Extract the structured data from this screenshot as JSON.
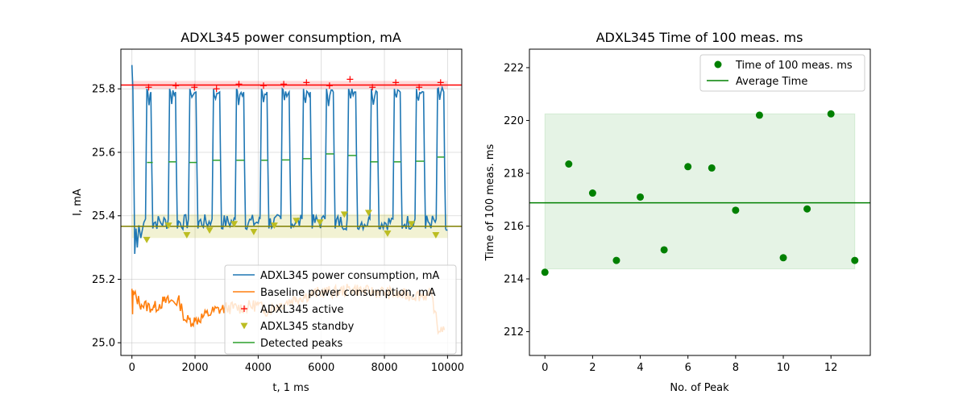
{
  "chart_data": [
    {
      "type": "line",
      "title": "ADXL345 power consumption, mA",
      "xlabel": "t, 1 ms",
      "ylabel": "I, mA",
      "xlim": [
        -350,
        10450
      ],
      "ylim": [
        24.96,
        25.925
      ],
      "xticks": [
        0,
        2000,
        4000,
        6000,
        8000,
        10000
      ],
      "yticks": [
        25.0,
        25.2,
        25.4,
        25.6,
        25.8
      ],
      "grid": true,
      "legend_position": "lower-right",
      "colors": {
        "main": "#1f77b4",
        "baseline": "#ff7f0e",
        "active": "#ff0000",
        "standby": "#bcbd22",
        "peaks": "#2ca02c"
      },
      "levels": {
        "active_mean": 25.812,
        "active_band": [
          25.8,
          25.825
        ],
        "standby_mean": 25.367,
        "standby_band": [
          25.33,
          25.405
        ]
      },
      "signal_model": {
        "high_segments": [
          [
            440,
            620
          ],
          [
            1160,
            1400
          ],
          [
            1800,
            2050
          ],
          [
            2550,
            2800
          ],
          [
            3280,
            3560
          ],
          [
            4070,
            4300
          ],
          [
            4730,
            5000
          ],
          [
            5400,
            5670
          ],
          [
            6130,
            6400
          ],
          [
            6830,
            7110
          ],
          [
            7550,
            7790
          ],
          [
            8280,
            8520
          ],
          [
            8980,
            9260
          ],
          [
            9650,
            9900
          ]
        ],
        "high_level": 25.79,
        "low_level": 25.38,
        "end_x": 10000
      },
      "series": [
        {
          "name": "ADXL345 power consumption, mA",
          "kind": "line",
          "color": "#1f77b4"
        },
        {
          "name": "Baseline power consumption, mA",
          "kind": "line",
          "color": "#ff7f0e",
          "x": [
            0,
            300,
            700,
            1000,
            1500,
            1600,
            1700,
            2000,
            2600,
            3000,
            3500,
            4000,
            4200,
            4700,
            5200,
            5600,
            6000,
            6500,
            7000,
            7500,
            8000,
            8500,
            9000,
            9500,
            9600,
            9700,
            9800,
            9900
          ],
          "values": [
            25.16,
            25.12,
            25.11,
            25.13,
            25.13,
            25.1,
            25.07,
            25.07,
            25.1,
            25.11,
            25.11,
            25.12,
            25.1,
            25.12,
            25.14,
            25.15,
            25.16,
            25.16,
            25.17,
            25.16,
            25.16,
            25.15,
            25.15,
            25.15,
            25.1,
            25.03,
            25.05,
            25.04
          ]
        },
        {
          "name": "ADXL345 active",
          "kind": "marker",
          "marker": "+",
          "color": "#ff0000",
          "x": [
            530,
            1390,
            1980,
            2680,
            3390,
            4170,
            4810,
            5530,
            6260,
            6910,
            7620,
            8360,
            9100,
            9780
          ],
          "values": [
            25.805,
            25.81,
            25.805,
            25.8,
            25.815,
            25.81,
            25.815,
            25.82,
            25.81,
            25.83,
            25.805,
            25.82,
            25.805,
            25.82
          ]
        },
        {
          "name": "ADXL345 standby",
          "kind": "marker",
          "marker": "v",
          "color": "#bcbd22",
          "x": [
            470,
            1160,
            1740,
            2460,
            3240,
            3860,
            4510,
            5210,
            5960,
            6730,
            7500,
            8100,
            8860,
            9630
          ],
          "values": [
            25.325,
            25.37,
            25.34,
            25.355,
            25.375,
            25.35,
            25.37,
            25.385,
            25.38,
            25.405,
            25.41,
            25.345,
            25.375,
            25.34
          ]
        },
        {
          "name": "Detected peaks",
          "kind": "segments",
          "color": "#2ca02c",
          "x": [
            [
              480,
              660
            ],
            [
              1160,
              1400
            ],
            [
              1820,
              2050
            ],
            [
              2550,
              2800
            ],
            [
              3310,
              3560
            ],
            [
              4100,
              4300
            ],
            [
              4750,
              5000
            ],
            [
              5420,
              5670
            ],
            [
              6150,
              6400
            ],
            [
              6860,
              7110
            ],
            [
              7550,
              7790
            ],
            [
              8300,
              8520
            ],
            [
              9000,
              9260
            ],
            [
              9680,
              9900
            ]
          ],
          "values": [
            25.568,
            25.57,
            25.568,
            25.575,
            25.575,
            25.575,
            25.576,
            25.58,
            25.595,
            25.59,
            25.57,
            25.57,
            25.572,
            25.585
          ]
        }
      ]
    },
    {
      "type": "scatter",
      "title": "ADXL345 Time of 100 meas. ms",
      "xlabel": "No. of Peak",
      "ylabel": "Time of 100 meas. ms",
      "xlim": [
        -0.65,
        13.65
      ],
      "ylim": [
        211.1,
        222.7
      ],
      "xticks": [
        0,
        2,
        4,
        6,
        8,
        10,
        12
      ],
      "yticks": [
        212,
        214,
        216,
        218,
        220,
        222
      ],
      "grid": false,
      "legend_position": "upper-right",
      "colors": {
        "points": "#008000",
        "band": "#d8ecd8"
      },
      "average": 216.88,
      "band": {
        "x": [
          0,
          13
        ],
        "y": [
          214.38,
          220.25
        ]
      },
      "series": [
        {
          "name": "Time of 100 meas. ms",
          "kind": "marker",
          "color": "#008000",
          "x": [
            0,
            1,
            2,
            3,
            4,
            5,
            6,
            7,
            8,
            9,
            10,
            11,
            12,
            13
          ],
          "values": [
            214.25,
            218.35,
            217.25,
            214.7,
            217.1,
            215.1,
            218.25,
            218.2,
            216.6,
            220.2,
            214.8,
            216.65,
            220.25,
            214.7
          ]
        },
        {
          "name": "Average Time",
          "kind": "hline",
          "color": "#008000"
        }
      ]
    }
  ]
}
